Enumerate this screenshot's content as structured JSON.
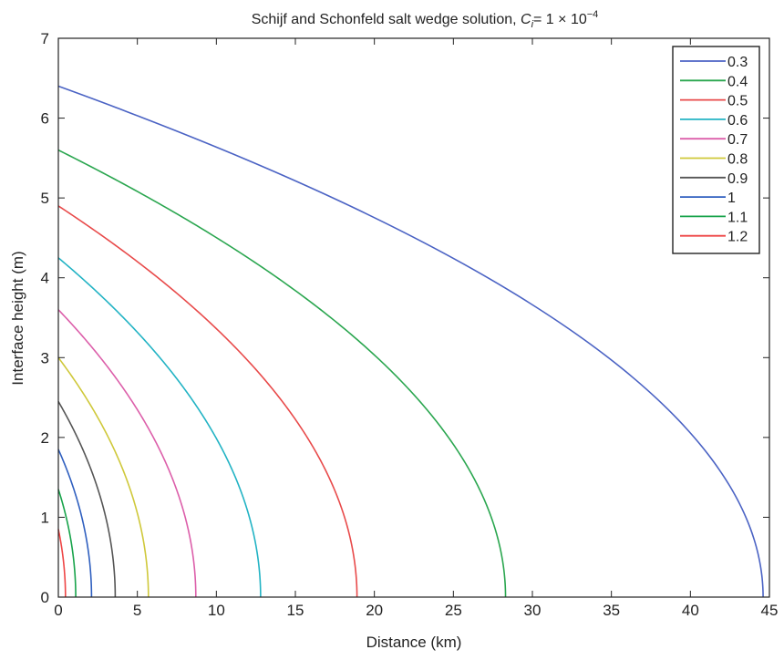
{
  "chart_data": {
    "type": "line",
    "title_text": "Schijf and Schonfeld salt wedge solution, ",
    "title_math": {
      "var": "C",
      "sub": "i",
      "eq": "= 1 × 10",
      "exp": "−4"
    },
    "xlabel": "Distance (km)",
    "ylabel": "Interface height (m)",
    "xlim": [
      0,
      45
    ],
    "ylim": [
      0,
      7
    ],
    "xticks": [
      0,
      5,
      10,
      15,
      20,
      25,
      30,
      35,
      40,
      45
    ],
    "yticks": [
      0,
      1,
      2,
      3,
      4,
      5,
      6,
      7
    ],
    "grid": false,
    "legend_position": "top-right",
    "series": [
      {
        "name": "0.3",
        "color": "#4b63c4",
        "x0": 44.6,
        "h0": 6.4
      },
      {
        "name": "0.4",
        "color": "#2aa64f",
        "x0": 28.3,
        "h0": 5.6
      },
      {
        "name": "0.5",
        "color": "#e84a4a",
        "x0": 18.9,
        "h0": 4.9
      },
      {
        "name": "0.6",
        "color": "#22b3c4",
        "x0": 12.8,
        "h0": 4.25
      },
      {
        "name": "0.7",
        "color": "#dc5faa",
        "x0": 8.7,
        "h0": 3.6
      },
      {
        "name": "0.8",
        "color": "#cfc83a",
        "x0": 5.7,
        "h0": 3.0
      },
      {
        "name": "0.9",
        "color": "#555555",
        "x0": 3.6,
        "h0": 2.45
      },
      {
        "name": "1",
        "color": "#2f5fbf",
        "x0": 2.1,
        "h0": 1.85
      },
      {
        "name": "1.1",
        "color": "#17a34a",
        "x0": 1.1,
        "h0": 1.35
      },
      {
        "name": "1.2",
        "color": "#ee4444",
        "x0": 0.45,
        "h0": 0.85
      }
    ]
  }
}
